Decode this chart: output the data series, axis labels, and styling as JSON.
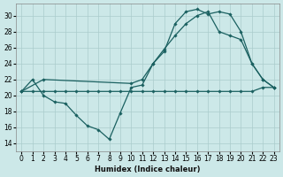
{
  "xlabel": "Humidex (Indice chaleur)",
  "bg_color": "#cce8e8",
  "grid_color": "#aacccc",
  "line_color": "#1a6060",
  "xlim": [
    -0.5,
    23.5
  ],
  "ylim": [
    13.0,
    31.5
  ],
  "yticks": [
    14,
    16,
    18,
    20,
    22,
    24,
    26,
    28,
    30
  ],
  "xticks": [
    0,
    1,
    2,
    3,
    4,
    5,
    6,
    7,
    8,
    9,
    10,
    11,
    12,
    13,
    14,
    15,
    16,
    17,
    18,
    19,
    20,
    21,
    22,
    23
  ],
  "curve_dip_x": [
    0,
    1,
    2,
    3,
    4,
    5,
    6,
    7,
    8,
    9,
    10,
    11,
    12,
    13,
    14,
    15,
    16,
    17,
    18,
    19,
    20,
    21,
    22,
    23
  ],
  "curve_dip_y": [
    20.5,
    22.0,
    20.0,
    19.2,
    19.0,
    17.5,
    16.2,
    15.7,
    14.5,
    17.8,
    21.0,
    21.3,
    24.0,
    25.5,
    29.0,
    30.5,
    30.8,
    30.2,
    30.5,
    30.2,
    28.0,
    24.0,
    22.0,
    21.0
  ],
  "curve_flat_x": [
    0,
    1,
    2,
    3,
    4,
    5,
    6,
    7,
    8,
    9,
    10,
    11,
    12,
    13,
    14,
    15,
    16,
    17,
    18,
    19,
    20,
    21,
    22,
    23
  ],
  "curve_flat_y": [
    20.5,
    20.5,
    20.5,
    20.5,
    20.5,
    20.5,
    20.5,
    20.5,
    20.5,
    20.5,
    20.5,
    20.5,
    20.5,
    20.5,
    20.5,
    20.5,
    20.5,
    20.5,
    20.5,
    20.5,
    20.5,
    20.5,
    21.0,
    21.0
  ],
  "curve_rise_x": [
    0,
    2,
    10,
    11,
    12,
    13,
    14,
    15,
    16,
    17,
    18,
    19,
    20,
    21,
    22,
    23
  ],
  "curve_rise_y": [
    20.5,
    22.0,
    21.5,
    22.0,
    24.0,
    25.8,
    27.5,
    29.0,
    30.0,
    30.5,
    28.0,
    27.5,
    27.0,
    24.0,
    22.0,
    21.0
  ]
}
